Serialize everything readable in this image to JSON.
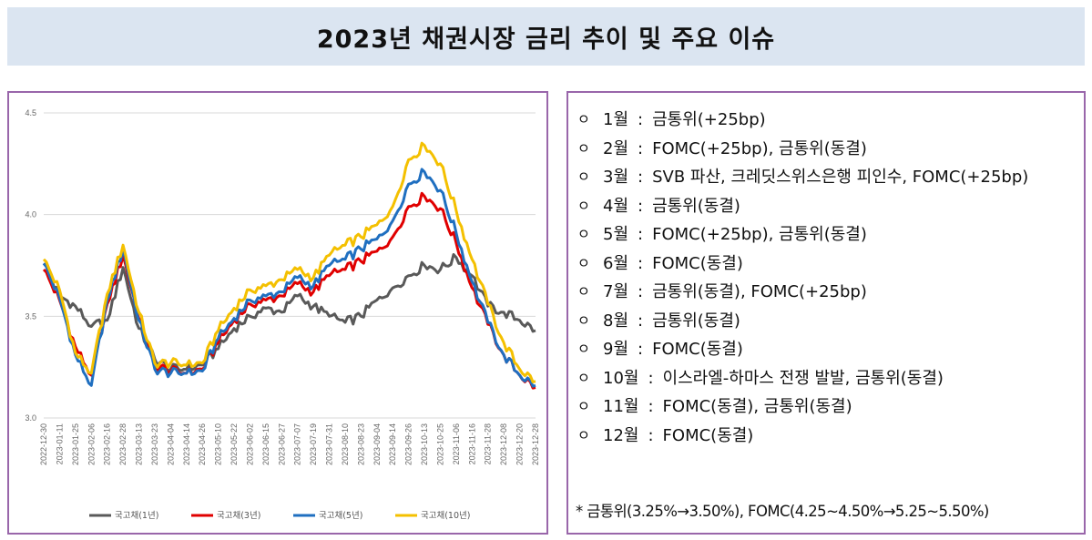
{
  "title": "2023년 채권시장 금리 추이 및 주요 이슈",
  "chart_data": {
    "type": "line",
    "title": "",
    "xlabel": "",
    "ylabel": "",
    "ylim": [
      3.0,
      4.5
    ],
    "yticks": [
      "3.0",
      "3.5",
      "4.0",
      "4.5"
    ],
    "grid": true,
    "legend_position": "bottom",
    "x": [
      "2022-12-30",
      "2023-01-11",
      "2023-01-25",
      "2023-02-06",
      "2023-02-16",
      "2023-02-28",
      "2023-03-13",
      "2023-03-23",
      "2023-04-04",
      "2023-04-14",
      "2023-04-26",
      "2023-05-10",
      "2023-05-22",
      "2023-06-02",
      "2023-06-15",
      "2023-06-27",
      "2023-07-07",
      "2023-07-19",
      "2023-07-31",
      "2023-08-10",
      "2023-08-23",
      "2023-09-04",
      "2023-09-14",
      "2023-09-26",
      "2023-10-13",
      "2023-10-25",
      "2023-11-06",
      "2023-11-16",
      "2023-11-28",
      "2023-12-08",
      "2023-12-20",
      "2023-12-28"
    ],
    "series": [
      {
        "name": "국고채(1년)",
        "color": "#595959",
        "values": [
          3.76,
          3.6,
          3.55,
          3.45,
          3.48,
          3.74,
          3.44,
          3.29,
          3.24,
          3.24,
          3.26,
          3.34,
          3.44,
          3.5,
          3.54,
          3.52,
          3.6,
          3.55,
          3.5,
          3.47,
          3.5,
          3.58,
          3.64,
          3.7,
          3.75,
          3.73,
          3.79,
          3.7,
          3.55,
          3.52,
          3.48,
          3.43
        ]
      },
      {
        "name": "국고채(3년)",
        "color": "#e00000",
        "values": [
          3.73,
          3.58,
          3.35,
          3.21,
          3.56,
          3.8,
          3.49,
          3.26,
          3.23,
          3.22,
          3.24,
          3.37,
          3.48,
          3.56,
          3.58,
          3.6,
          3.66,
          3.62,
          3.7,
          3.73,
          3.77,
          3.82,
          3.89,
          4.04,
          4.09,
          4.03,
          3.86,
          3.64,
          3.46,
          3.31,
          3.21,
          3.15
        ]
      },
      {
        "name": "국고채(5년)",
        "color": "#1f6fc0",
        "values": [
          3.76,
          3.59,
          3.31,
          3.16,
          3.58,
          3.83,
          3.48,
          3.24,
          3.22,
          3.22,
          3.23,
          3.39,
          3.49,
          3.58,
          3.6,
          3.62,
          3.69,
          3.65,
          3.75,
          3.78,
          3.83,
          3.88,
          3.97,
          4.15,
          4.21,
          4.12,
          3.91,
          3.67,
          3.47,
          3.31,
          3.21,
          3.16
        ]
      },
      {
        "name": "국고채(10년)",
        "color": "#f4c000",
        "values": [
          3.78,
          3.63,
          3.32,
          3.22,
          3.61,
          3.85,
          3.52,
          3.27,
          3.27,
          3.26,
          3.27,
          3.43,
          3.54,
          3.63,
          3.65,
          3.68,
          3.73,
          3.69,
          3.8,
          3.85,
          3.89,
          3.95,
          4.04,
          4.27,
          4.34,
          4.25,
          4.02,
          3.78,
          3.56,
          3.37,
          3.24,
          3.18
        ]
      }
    ]
  },
  "issues": [
    {
      "bullet": "ㅇ",
      "month": "1월",
      "sep": ":",
      "text": "금통위(+25bp)"
    },
    {
      "bullet": "ㅇ",
      "month": "2월",
      "sep": ":",
      "text": "FOMC(+25bp), 금통위(동결)"
    },
    {
      "bullet": "ㅇ",
      "month": "3월",
      "sep": ":",
      "text": "SVB 파산, 크레딧스위스은행 피인수, FOMC(+25bp)"
    },
    {
      "bullet": "ㅇ",
      "month": "4월",
      "sep": ":",
      "text": "금통위(동결)"
    },
    {
      "bullet": "ㅇ",
      "month": "5월",
      "sep": ":",
      "text": "FOMC(+25bp), 금통위(동결)"
    },
    {
      "bullet": "ㅇ",
      "month": "6월",
      "sep": ":",
      "text": "FOMC(동결)"
    },
    {
      "bullet": "ㅇ",
      "month": "7월",
      "sep": ":",
      "text": "금통위(동결), FOMC(+25bp)"
    },
    {
      "bullet": "ㅇ",
      "month": "8월",
      "sep": ":",
      "text": "금통위(동결)"
    },
    {
      "bullet": "ㅇ",
      "month": "9월",
      "sep": ":",
      "text": "FOMC(동결)"
    },
    {
      "bullet": "ㅇ",
      "month": "10월",
      "sep": ":",
      "text": "이스라엘-하마스 전쟁 발발, 금통위(동결)"
    },
    {
      "bullet": "ㅇ",
      "month": "11월",
      "sep": ":",
      "text": "FOMC(동결), 금통위(동결)"
    },
    {
      "bullet": "ㅇ",
      "month": "12월",
      "sep": ":",
      "text": "FOMC(동결)"
    }
  ],
  "footnote": "* 금통위(3.25%→3.50%), FOMC(4.25~4.50%→5.25~5.50%)"
}
